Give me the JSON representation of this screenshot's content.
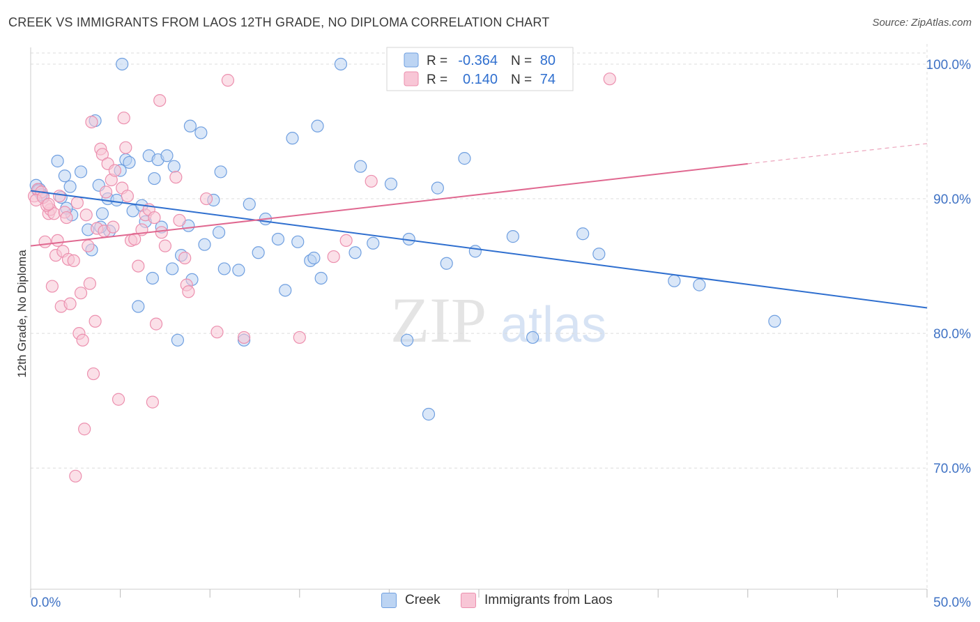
{
  "title": "CREEK VS IMMIGRANTS FROM LAOS 12TH GRADE, NO DIPLOMA CORRELATION CHART",
  "source": "Source: ZipAtlas.com",
  "watermark": {
    "zip": "ZIP",
    "atlas": "atlas"
  },
  "colors": {
    "creek_fill": "#bcd4f3",
    "creek_stroke": "#6f9fe0",
    "creek_line": "#2f6fcf",
    "laos_fill": "#f8c6d6",
    "laos_stroke": "#ec8fae",
    "laos_line": "#e06890",
    "axis_label_blue": "#3f72c4",
    "grid": "#dcdcdc"
  },
  "stats_legend": {
    "creek": {
      "r_label": "R =",
      "r_value": "-0.364",
      "n_label": "N =",
      "n_value": "80"
    },
    "laos": {
      "r_label": "R =",
      "r_value": "0.140",
      "n_label": "N =",
      "n_value": "74"
    }
  },
  "chart_data": {
    "type": "scatter",
    "ylabel": "12th Grade, No Diploma",
    "xlim": [
      0,
      50
    ],
    "ylim": [
      61,
      101.5
    ],
    "x_tick_labels": [
      "0.0%",
      "50.0%"
    ],
    "y_ticks": [
      70,
      80,
      90,
      100
    ],
    "y_tick_labels": [
      "70.0%",
      "80.0%",
      "90.0%",
      "100.0%"
    ],
    "grid": "horizontal dashed",
    "legend_position": "bottom",
    "series": [
      {
        "name": "Creek",
        "trend": {
          "x": [
            0,
            50
          ],
          "y": [
            90.6,
            81.9
          ]
        },
        "points": [
          [
            0.3,
            91.0
          ],
          [
            0.5,
            90.7
          ],
          [
            0.7,
            90.2
          ],
          [
            1.5,
            92.8
          ],
          [
            1.7,
            90.1
          ],
          [
            1.9,
            91.7
          ],
          [
            2.2,
            90.9
          ],
          [
            2.3,
            88.8
          ],
          [
            2.8,
            92.0
          ],
          [
            3.2,
            87.7
          ],
          [
            3.4,
            86.2
          ],
          [
            3.6,
            95.8
          ],
          [
            3.8,
            91.0
          ],
          [
            4.0,
            88.9
          ],
          [
            4.3,
            90.0
          ],
          [
            4.4,
            87.6
          ],
          [
            4.8,
            89.9
          ],
          [
            5.0,
            92.1
          ],
          [
            5.1,
            100.0
          ],
          [
            5.3,
            92.9
          ],
          [
            5.5,
            92.7
          ],
          [
            5.7,
            89.1
          ],
          [
            6.0,
            82.0
          ],
          [
            6.2,
            89.5
          ],
          [
            6.4,
            88.3
          ],
          [
            6.6,
            93.2
          ],
          [
            6.8,
            84.1
          ],
          [
            6.9,
            91.5
          ],
          [
            7.1,
            92.9
          ],
          [
            7.3,
            87.9
          ],
          [
            7.6,
            93.2
          ],
          [
            7.9,
            84.8
          ],
          [
            8.0,
            92.4
          ],
          [
            8.2,
            79.5
          ],
          [
            8.4,
            85.8
          ],
          [
            8.8,
            88.0
          ],
          [
            8.9,
            95.4
          ],
          [
            9.0,
            84.0
          ],
          [
            9.5,
            94.9
          ],
          [
            9.7,
            86.6
          ],
          [
            10.2,
            89.9
          ],
          [
            10.5,
            87.5
          ],
          [
            10.6,
            92.0
          ],
          [
            10.8,
            84.8
          ],
          [
            11.6,
            84.7
          ],
          [
            11.9,
            79.5
          ],
          [
            12.2,
            89.6
          ],
          [
            12.7,
            86.0
          ],
          [
            13.1,
            88.5
          ],
          [
            13.8,
            87.0
          ],
          [
            14.2,
            83.2
          ],
          [
            14.6,
            94.5
          ],
          [
            14.9,
            86.8
          ],
          [
            15.6,
            85.4
          ],
          [
            15.8,
            85.6
          ],
          [
            16.0,
            95.4
          ],
          [
            16.2,
            84.1
          ],
          [
            17.3,
            100.0
          ],
          [
            18.1,
            86.0
          ],
          [
            18.4,
            92.4
          ],
          [
            19.1,
            86.7
          ],
          [
            20.1,
            91.1
          ],
          [
            21.0,
            79.5
          ],
          [
            21.1,
            87.0
          ],
          [
            22.2,
            74.0
          ],
          [
            22.7,
            90.8
          ],
          [
            23.2,
            85.2
          ],
          [
            24.2,
            93.0
          ],
          [
            24.8,
            86.1
          ],
          [
            26.9,
            87.2
          ],
          [
            28.0,
            79.7
          ],
          [
            30.8,
            87.4
          ],
          [
            31.7,
            85.9
          ],
          [
            35.9,
            83.9
          ],
          [
            37.3,
            83.6
          ],
          [
            41.5,
            80.9
          ],
          [
            0.4,
            90.6
          ],
          [
            0.6,
            90.3
          ],
          [
            2.0,
            89.3
          ],
          [
            3.9,
            87.9
          ]
        ]
      },
      {
        "name": "Immigrants from Laos",
        "trend": {
          "x": [
            0,
            40
          ],
          "y": [
            86.5,
            92.6
          ]
        },
        "dash": {
          "x": [
            40,
            50
          ],
          "y": [
            92.6,
            94.1
          ]
        },
        "points": [
          [
            0.2,
            90.2
          ],
          [
            0.4,
            90.7
          ],
          [
            0.6,
            90.5
          ],
          [
            0.8,
            86.8
          ],
          [
            1.0,
            88.9
          ],
          [
            1.1,
            89.2
          ],
          [
            1.2,
            83.5
          ],
          [
            1.3,
            88.9
          ],
          [
            1.4,
            85.8
          ],
          [
            1.5,
            86.9
          ],
          [
            1.7,
            82.0
          ],
          [
            1.8,
            86.1
          ],
          [
            1.9,
            89.0
          ],
          [
            2.0,
            88.6
          ],
          [
            2.1,
            85.5
          ],
          [
            2.2,
            82.2
          ],
          [
            2.4,
            85.4
          ],
          [
            2.6,
            89.7
          ],
          [
            2.7,
            80.0
          ],
          [
            2.8,
            83.0
          ],
          [
            2.9,
            79.5
          ],
          [
            3.0,
            72.9
          ],
          [
            3.1,
            88.8
          ],
          [
            3.2,
            86.5
          ],
          [
            3.3,
            83.7
          ],
          [
            3.5,
            77.0
          ],
          [
            3.6,
            80.9
          ],
          [
            3.7,
            87.8
          ],
          [
            3.9,
            93.7
          ],
          [
            4.0,
            93.3
          ],
          [
            4.1,
            87.6
          ],
          [
            4.3,
            92.6
          ],
          [
            4.5,
            91.4
          ],
          [
            4.7,
            92.1
          ],
          [
            4.9,
            75.1
          ],
          [
            5.1,
            90.8
          ],
          [
            5.2,
            96.0
          ],
          [
            5.3,
            93.8
          ],
          [
            5.4,
            90.2
          ],
          [
            5.6,
            86.9
          ],
          [
            6.0,
            85.0
          ],
          [
            6.2,
            87.7
          ],
          [
            6.4,
            88.8
          ],
          [
            6.6,
            89.2
          ],
          [
            6.8,
            74.9
          ],
          [
            7.0,
            80.7
          ],
          [
            7.2,
            97.3
          ],
          [
            7.3,
            87.5
          ],
          [
            8.1,
            91.6
          ],
          [
            8.3,
            88.4
          ],
          [
            8.6,
            85.6
          ],
          [
            8.7,
            83.6
          ],
          [
            8.8,
            83.1
          ],
          [
            9.8,
            90.0
          ],
          [
            10.4,
            80.1
          ],
          [
            11.0,
            98.8
          ],
          [
            11.9,
            79.7
          ],
          [
            15.0,
            79.7
          ],
          [
            16.9,
            85.7
          ],
          [
            17.6,
            86.9
          ],
          [
            19.0,
            91.3
          ],
          [
            32.3,
            98.9
          ],
          [
            2.5,
            69.4
          ],
          [
            0.9,
            89.5
          ],
          [
            1.6,
            90.2
          ],
          [
            3.4,
            95.7
          ],
          [
            4.2,
            90.5
          ],
          [
            5.8,
            87.0
          ],
          [
            6.9,
            88.6
          ],
          [
            7.5,
            86.5
          ],
          [
            0.3,
            89.9
          ],
          [
            0.7,
            90.1
          ],
          [
            1.0,
            89.6
          ],
          [
            4.6,
            87.9
          ]
        ]
      }
    ]
  },
  "bottom_legend": {
    "creek_label": "Creek",
    "laos_label": "Immigrants from Laos"
  }
}
